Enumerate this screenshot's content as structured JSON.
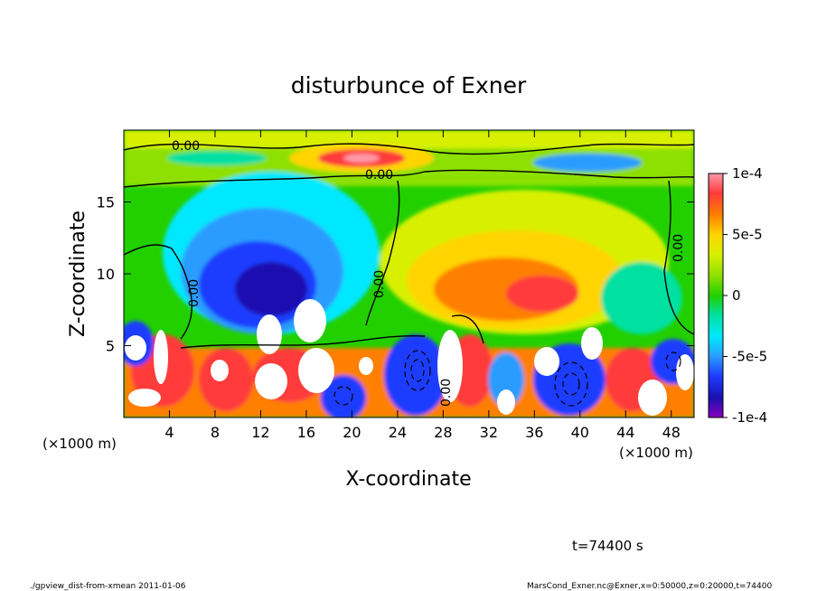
{
  "chart_data": {
    "type": "heatmap",
    "title": "disturbunce of Exner",
    "xlabel": "X-coordinate",
    "ylabel": "Z-coordinate",
    "x_unit_left": "(×1000 m)",
    "x_unit_right": "(×1000 m)",
    "xlim": [
      0,
      50
    ],
    "ylim": [
      0,
      20
    ],
    "x_ticks": [
      4,
      8,
      12,
      16,
      20,
      24,
      28,
      32,
      36,
      40,
      44,
      48
    ],
    "y_ticks": [
      5,
      10,
      15
    ],
    "colorbar": {
      "range": [
        -0.0001,
        0.0001
      ],
      "tick_labels": [
        "1e-4",
        "5e-5",
        "0",
        "-5e-5",
        "-1e-4"
      ],
      "colors": [
        "#ff9aa8",
        "#ff3b3b",
        "#ff7f00",
        "#ffd400",
        "#d8f000",
        "#8de000",
        "#22d000",
        "#00e0a0",
        "#00e8ff",
        "#2b9cff",
        "#1e3cff",
        "#1a10b0",
        "#8a00c0"
      ]
    },
    "contour_labels": [
      "0.00",
      "0.00",
      "0.00",
      "0.00",
      "0.00",
      "0.00"
    ],
    "features": [
      {
        "x": 14,
        "z": 10.5,
        "value": -9e-05
      },
      {
        "x": 21,
        "z": 18.5,
        "value": 9e-05
      },
      {
        "x": 31,
        "z": 10,
        "value": 6e-05
      },
      {
        "x": 38,
        "z": 8,
        "value": 5e-05
      },
      {
        "x": 42,
        "z": 18,
        "value": -4e-05
      },
      {
        "x": 26,
        "z": 3,
        "value": -7e-05
      },
      {
        "x": 40,
        "z": 2.5,
        "value": -8e-05
      }
    ]
  },
  "annotations": {
    "time": "t=74400 s",
    "footer_left": "./gpview_dist-from-xmean   2011-01-06",
    "footer_right": "MarsCond_Exner.nc@Exner,x=0:50000,z=0:20000,t=74400"
  }
}
